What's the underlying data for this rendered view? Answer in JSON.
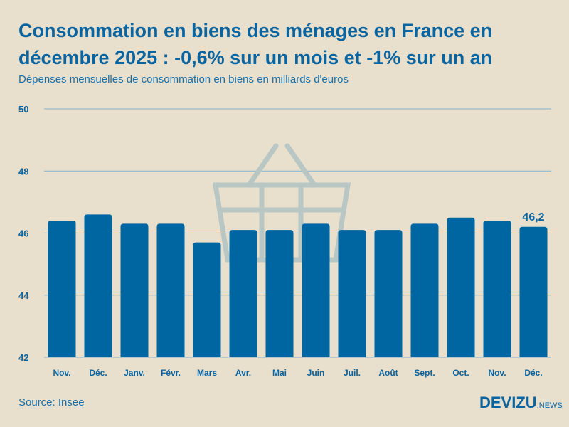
{
  "header": {
    "title": "Consommation en biens des ménages en France en décembre 2025 : -0,6% sur un mois et -1% sur un an",
    "subtitle": "Dépenses mensuelles de consommation en biens en milliards d'euros"
  },
  "footer": {
    "source": "Source: Insee",
    "logo_main": "DEVIZU",
    "logo_sub": ".NEWS"
  },
  "colors": {
    "bar": "#0066a1",
    "grid": "#7fb0cf",
    "background": "#e8e0cd",
    "text": "#0a64a0",
    "watermark": "#b8c6c4"
  },
  "watermark_icon": "shopping-basket-icon",
  "chart_data": {
    "type": "bar",
    "categories": [
      "Nov.",
      "Déc.",
      "Janv.",
      "Févr.",
      "Mars",
      "Avr.",
      "Mai",
      "Juin",
      "Juil.",
      "Août",
      "Sept.",
      "Oct.",
      "Nov.",
      "Déc."
    ],
    "values": [
      46.4,
      46.6,
      46.3,
      46.3,
      45.7,
      46.1,
      46.1,
      46.3,
      46.1,
      46.1,
      46.3,
      46.5,
      46.4,
      46.2
    ],
    "data_labels": [
      {
        "index": 13,
        "text": "46,2"
      }
    ],
    "ylim": [
      42,
      50
    ],
    "yticks": [
      "42",
      "44",
      "46",
      "48",
      "50"
    ],
    "grid": true,
    "xlabel": "",
    "ylabel": ""
  }
}
